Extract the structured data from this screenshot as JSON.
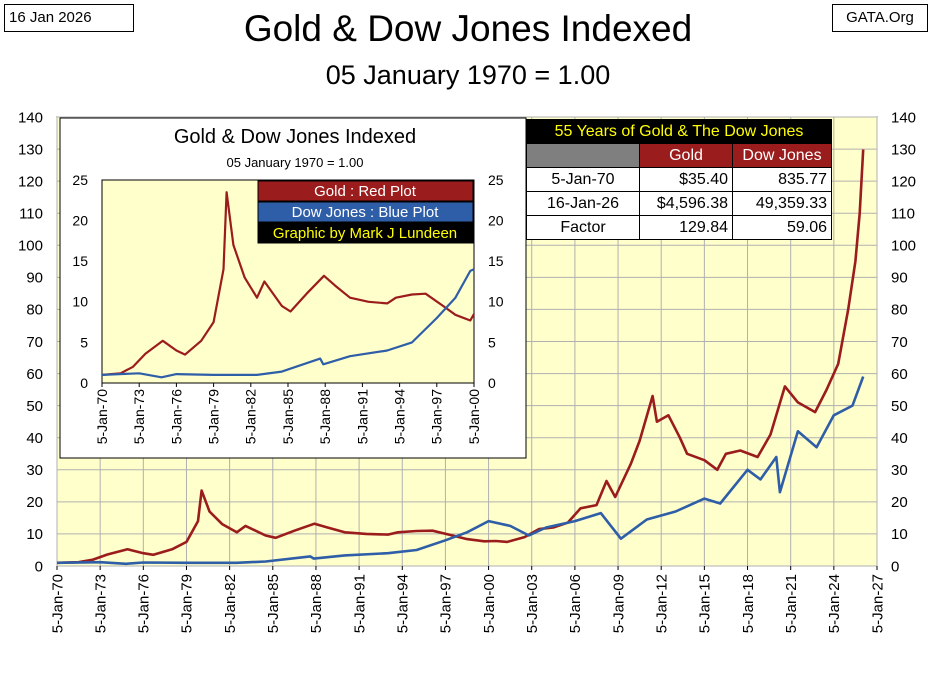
{
  "header": {
    "date": "16 Jan 2026",
    "source": "GATA.Org",
    "title": "Gold & Dow Jones Indexed",
    "subtitle": "05 January 1970 = 1.00"
  },
  "colors": {
    "gold": "#9b1c1c",
    "dow": "#2f5ea8",
    "plot_bg": "#ffffcc",
    "grid": "#b0b0b0"
  },
  "chart_data": [
    {
      "type": "line",
      "title": "Gold & Dow Jones Indexed",
      "subtitle": "05 January 1970 = 1.00",
      "x_ticks": [
        "5-Jan-70",
        "5-Jan-73",
        "5-Jan-76",
        "5-Jan-79",
        "5-Jan-82",
        "5-Jan-85",
        "5-Jan-88",
        "5-Jan-91",
        "5-Jan-94",
        "5-Jan-97",
        "5-Jan-00",
        "5-Jan-03",
        "5-Jan-06",
        "5-Jan-09",
        "5-Jan-12",
        "5-Jan-15",
        "5-Jan-18",
        "5-Jan-21",
        "5-Jan-24",
        "5-Jan-27"
      ],
      "xlim": [
        1970.0,
        2027.0
      ],
      "ylim": [
        0,
        140
      ],
      "y_ticks": [
        0,
        10,
        20,
        30,
        40,
        50,
        60,
        70,
        80,
        90,
        100,
        110,
        120,
        130,
        140
      ],
      "grid": true,
      "series": [
        {
          "name": "Gold",
          "x": [
            1970.0,
            1971.5,
            1972.5,
            1973.5,
            1974.9,
            1976.0,
            1976.7,
            1978.0,
            1979.0,
            1979.8,
            1980.05,
            1980.6,
            1981.5,
            1982.5,
            1983.1,
            1984.5,
            1985.2,
            1986.5,
            1987.9,
            1988.8,
            1990.0,
            1991.5,
            1993.0,
            1993.7,
            1995.0,
            1996.1,
            1997.5,
            1998.5,
            1999.7,
            2000.5,
            2001.3,
            2002.5,
            2003.5,
            2004.5,
            2005.5,
            2006.4,
            2007.5,
            2008.2,
            2008.8,
            2009.9,
            2010.5,
            2011.4,
            2011.7,
            2012.5,
            2013.3,
            2013.8,
            2015.0,
            2015.9,
            2016.5,
            2017.5,
            2018.7,
            2019.6,
            2020.6,
            2021.5,
            2022.7,
            2023.5,
            2024.3,
            2025.0,
            2025.5,
            2025.8,
            2026.04
          ],
          "values": [
            1.0,
            1.2,
            2.0,
            3.6,
            5.2,
            4.0,
            3.5,
            5.2,
            7.5,
            14.0,
            23.5,
            17.0,
            13.0,
            10.5,
            12.5,
            9.5,
            8.8,
            11.0,
            13.2,
            12.0,
            10.5,
            10.0,
            9.8,
            10.5,
            10.9,
            11.0,
            9.5,
            8.4,
            7.7,
            7.8,
            7.5,
            9.0,
            11.5,
            12.0,
            13.5,
            18.0,
            19.0,
            26.5,
            21.5,
            32.0,
            39.0,
            53.0,
            45.0,
            47.0,
            40.0,
            35.0,
            33.0,
            30.0,
            35.0,
            36.0,
            34.0,
            41.0,
            56.0,
            51.0,
            48.0,
            55.0,
            63.0,
            80.0,
            95.0,
            110.0,
            129.84
          ]
        },
        {
          "name": "Dow Jones",
          "x": [
            1970.0,
            1973.0,
            1974.8,
            1976.0,
            1979.0,
            1982.5,
            1984.5,
            1987.6,
            1987.85,
            1990.0,
            1993.0,
            1995.0,
            1997.0,
            1998.5,
            2000.0,
            2001.5,
            2002.8,
            2004.0,
            2006.0,
            2007.8,
            2009.2,
            2011.0,
            2013.0,
            2015.0,
            2016.1,
            2018.0,
            2018.9,
            2020.0,
            2020.25,
            2021.5,
            2022.8,
            2024.0,
            2025.3,
            2026.04
          ],
          "values": [
            1.0,
            1.2,
            0.7,
            1.1,
            1.0,
            1.0,
            1.4,
            3.0,
            2.3,
            3.3,
            4.0,
            5.0,
            8.0,
            10.5,
            14.0,
            12.5,
            9.5,
            12.0,
            14.0,
            16.5,
            8.5,
            14.5,
            17.0,
            21.0,
            19.5,
            30.0,
            27.0,
            34.0,
            23.0,
            42.0,
            37.0,
            47.0,
            50.0,
            59.06
          ]
        }
      ]
    },
    {
      "type": "line",
      "title": "Gold & Dow Jones Indexed",
      "subtitle": "05 January 1970 = 1.00",
      "x_ticks": [
        "5-Jan-70",
        "5-Jan-73",
        "5-Jan-76",
        "5-Jan-79",
        "5-Jan-82",
        "5-Jan-85",
        "5-Jan-88",
        "5-Jan-91",
        "5-Jan-94",
        "5-Jan-97",
        "5-Jan-00"
      ],
      "xlim": [
        1970.0,
        2000.0
      ],
      "ylim": [
        0,
        25
      ],
      "y_ticks": [
        0,
        5,
        10,
        15,
        20,
        25
      ],
      "grid": false,
      "legend": [
        "Gold : Red Plot",
        "Dow Jones : Blue Plot",
        "Graphic by Mark J Lundeen"
      ],
      "series": [
        {
          "name": "Gold",
          "x": [
            1970.0,
            1971.5,
            1972.5,
            1973.5,
            1974.9,
            1976.0,
            1976.7,
            1978.0,
            1979.0,
            1979.8,
            1980.05,
            1980.6,
            1981.5,
            1982.5,
            1983.1,
            1984.5,
            1985.2,
            1986.5,
            1987.9,
            1988.8,
            1990.0,
            1991.5,
            1993.0,
            1993.7,
            1995.0,
            1996.1,
            1997.5,
            1998.5,
            1999.7,
            2000.0
          ],
          "values": [
            1.0,
            1.2,
            2.0,
            3.6,
            5.2,
            4.0,
            3.5,
            5.2,
            7.5,
            14.0,
            23.5,
            17.0,
            13.0,
            10.5,
            12.5,
            9.5,
            8.8,
            11.0,
            13.2,
            12.0,
            10.5,
            10.0,
            9.8,
            10.5,
            10.9,
            11.0,
            9.5,
            8.4,
            7.7,
            8.5
          ]
        },
        {
          "name": "Dow Jones",
          "x": [
            1970.0,
            1973.0,
            1974.8,
            1976.0,
            1979.0,
            1982.5,
            1984.5,
            1987.6,
            1987.85,
            1990.0,
            1993.0,
            1995.0,
            1997.0,
            1998.5,
            1999.7,
            2000.0
          ],
          "values": [
            1.0,
            1.2,
            0.7,
            1.1,
            1.0,
            1.0,
            1.4,
            3.0,
            2.3,
            3.3,
            4.0,
            5.0,
            8.0,
            10.5,
            13.8,
            14.0
          ]
        }
      ]
    }
  ],
  "table": {
    "caption": "55 Years of Gold & The Dow Jones",
    "col_gold": "Gold",
    "col_dow": "Dow Jones",
    "rows": [
      {
        "label": "5-Jan-70",
        "gold": "$35.40",
        "dow": "835.77"
      },
      {
        "label": "16-Jan-26",
        "gold": "$4,596.38",
        "dow": "49,359.33"
      },
      {
        "label": "Factor",
        "gold": "129.84",
        "dow": "59.06"
      }
    ]
  }
}
